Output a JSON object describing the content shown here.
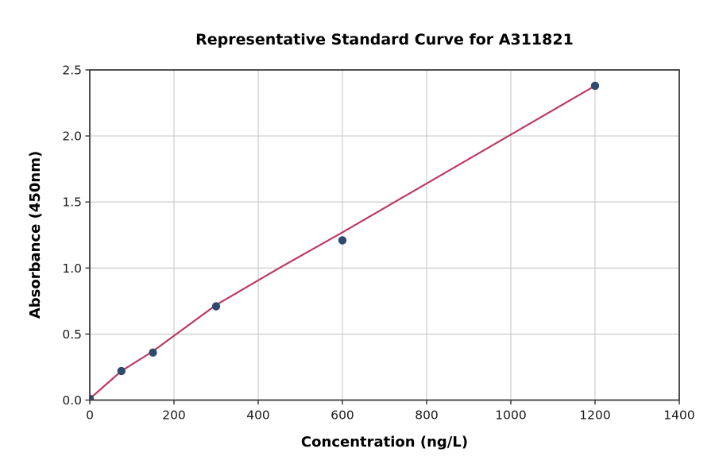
{
  "chart_data": {
    "type": "scatter",
    "title": "Representative Standard Curve for A311821",
    "xlabel": "Concentration (ng/L)",
    "ylabel": "Absorbance (450nm)",
    "xlim": [
      0,
      1400
    ],
    "ylim": [
      0.0,
      2.5
    ],
    "xticks": [
      0,
      200,
      400,
      600,
      800,
      1000,
      1200,
      1400
    ],
    "xtick_labels": [
      "0",
      "200",
      "400",
      "600",
      "800",
      "1000",
      "1200",
      "1400"
    ],
    "yticks": [
      0.0,
      0.5,
      1.0,
      1.5,
      2.0,
      2.5
    ],
    "ytick_labels": [
      "0.0",
      "0.5",
      "1.0",
      "1.5",
      "2.0",
      "2.5"
    ],
    "grid": true,
    "legend_position": "none",
    "series": [
      {
        "name": "standard-points",
        "kind": "scatter",
        "x": [
          0,
          75,
          150,
          300,
          600,
          1200
        ],
        "y": [
          0.01,
          0.22,
          0.36,
          0.71,
          1.21,
          2.38
        ]
      },
      {
        "name": "fit-line",
        "kind": "line",
        "x": [
          0,
          75,
          150,
          300,
          450,
          600,
          800,
          1000,
          1200
        ],
        "y": [
          0.01,
          0.22,
          0.37,
          0.72,
          1.0,
          1.27,
          1.64,
          2.01,
          2.38
        ]
      }
    ],
    "colors": {
      "point": "#2e4a6e",
      "line": "#bd3a62",
      "grid": "#c8c8c8",
      "frame": "#3c3c3c",
      "text": "#000000",
      "background": "#ffffff"
    }
  }
}
